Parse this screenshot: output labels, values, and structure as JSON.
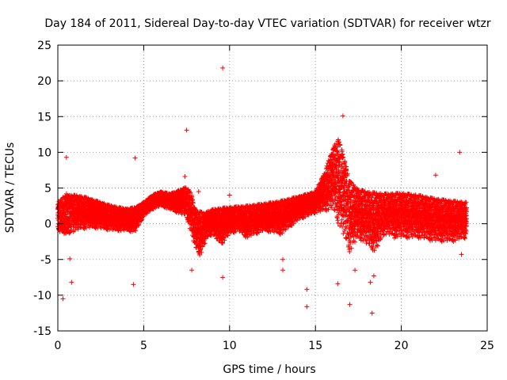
{
  "chart_data": {
    "type": "scatter",
    "title": "Day 184 of 2011, Sidereal Day-to-day VTEC variation (SDTVAR) for receiver wtzr",
    "xlabel": "GPS time / hours",
    "ylabel": "SDTVAR / TECUs",
    "xlim": [
      0,
      25
    ],
    "ylim": [
      -15,
      25
    ],
    "xticks": [
      0,
      5,
      10,
      15,
      20,
      25
    ],
    "yticks": [
      -15,
      -10,
      -5,
      0,
      5,
      10,
      15,
      20,
      25
    ],
    "grid": true,
    "marker": "+",
    "color": "#ff0000",
    "series": [
      {
        "name": "SDTVAR",
        "description_note": "dense band; upper/lower envelope samples (hours, TECU)",
        "upper_envelope": [
          [
            0.0,
            3.0
          ],
          [
            0.5,
            4.2
          ],
          [
            1.0,
            4.0
          ],
          [
            1.5,
            3.8
          ],
          [
            2.0,
            3.4
          ],
          [
            2.5,
            3.0
          ],
          [
            3.0,
            2.6
          ],
          [
            3.5,
            2.3
          ],
          [
            4.0,
            2.1
          ],
          [
            4.5,
            2.3
          ],
          [
            5.0,
            3.0
          ],
          [
            5.5,
            4.0
          ],
          [
            6.0,
            4.5
          ],
          [
            6.5,
            4.2
          ],
          [
            7.0,
            4.6
          ],
          [
            7.5,
            5.2
          ],
          [
            7.8,
            4.0
          ],
          [
            8.0,
            2.0
          ],
          [
            8.5,
            1.5
          ],
          [
            9.0,
            2.0
          ],
          [
            9.5,
            2.2
          ],
          [
            10.0,
            2.3
          ],
          [
            11.0,
            2.5
          ],
          [
            12.0,
            2.8
          ],
          [
            13.0,
            3.2
          ],
          [
            14.0,
            3.8
          ],
          [
            15.0,
            4.5
          ],
          [
            15.5,
            7.0
          ],
          [
            16.0,
            10.5
          ],
          [
            16.3,
            12.0
          ],
          [
            16.6,
            10.0
          ],
          [
            17.0,
            6.0
          ],
          [
            17.5,
            4.8
          ],
          [
            18.0,
            4.5
          ],
          [
            19.0,
            4.2
          ],
          [
            20.0,
            4.3
          ],
          [
            21.0,
            4.0
          ],
          [
            22.0,
            3.5
          ],
          [
            23.0,
            3.2
          ],
          [
            23.8,
            3.0
          ]
        ],
        "lower_envelope": [
          [
            0.0,
            -1.0
          ],
          [
            0.5,
            -1.5
          ],
          [
            1.0,
            -1.0
          ],
          [
            1.5,
            -0.7
          ],
          [
            2.0,
            -0.6
          ],
          [
            2.5,
            -0.7
          ],
          [
            3.0,
            -0.9
          ],
          [
            3.5,
            -1.0
          ],
          [
            4.0,
            -1.0
          ],
          [
            4.5,
            -1.2
          ],
          [
            5.0,
            1.0
          ],
          [
            5.5,
            2.0
          ],
          [
            6.0,
            2.5
          ],
          [
            6.5,
            2.0
          ],
          [
            7.0,
            1.5
          ],
          [
            7.5,
            1.0
          ],
          [
            8.0,
            -3.5
          ],
          [
            8.3,
            -4.5
          ],
          [
            8.7,
            -2.0
          ],
          [
            9.0,
            -1.5
          ],
          [
            9.5,
            -3.0
          ],
          [
            10.0,
            -1.5
          ],
          [
            10.5,
            -1.0
          ],
          [
            11.0,
            -2.0
          ],
          [
            12.0,
            -1.0
          ],
          [
            13.0,
            -1.5
          ],
          [
            14.0,
            0.5
          ],
          [
            15.0,
            1.5
          ],
          [
            16.0,
            2.0
          ],
          [
            16.5,
            -1.0
          ],
          [
            17.0,
            -4.0
          ],
          [
            17.5,
            -2.0
          ],
          [
            18.0,
            -3.0
          ],
          [
            18.5,
            -4.0
          ],
          [
            19.0,
            -1.5
          ],
          [
            20.0,
            -2.0
          ],
          [
            21.0,
            -2.0
          ],
          [
            22.0,
            -2.5
          ],
          [
            23.0,
            -2.5
          ],
          [
            23.8,
            -2.0
          ]
        ],
        "outliers": [
          [
            0.3,
            -10.5
          ],
          [
            0.5,
            9.3
          ],
          [
            0.7,
            -4.9
          ],
          [
            0.8,
            -8.2
          ],
          [
            4.5,
            9.2
          ],
          [
            4.4,
            -8.5
          ],
          [
            7.5,
            13.1
          ],
          [
            7.4,
            6.6
          ],
          [
            7.8,
            -6.5
          ],
          [
            8.2,
            4.5
          ],
          [
            9.6,
            21.8
          ],
          [
            9.6,
            -7.5
          ],
          [
            10.0,
            4.0
          ],
          [
            13.1,
            -5.0
          ],
          [
            13.1,
            -6.5
          ],
          [
            14.5,
            -9.2
          ],
          [
            14.5,
            -11.6
          ],
          [
            16.3,
            -8.4
          ],
          [
            16.6,
            15.1
          ],
          [
            17.0,
            -11.3
          ],
          [
            17.3,
            -6.5
          ],
          [
            18.2,
            -8.2
          ],
          [
            18.4,
            -7.3
          ],
          [
            18.3,
            -12.5
          ],
          [
            19.6,
            -2.0
          ],
          [
            22.0,
            6.8
          ],
          [
            23.4,
            10.0
          ],
          [
            23.5,
            -4.3
          ]
        ]
      }
    ]
  }
}
